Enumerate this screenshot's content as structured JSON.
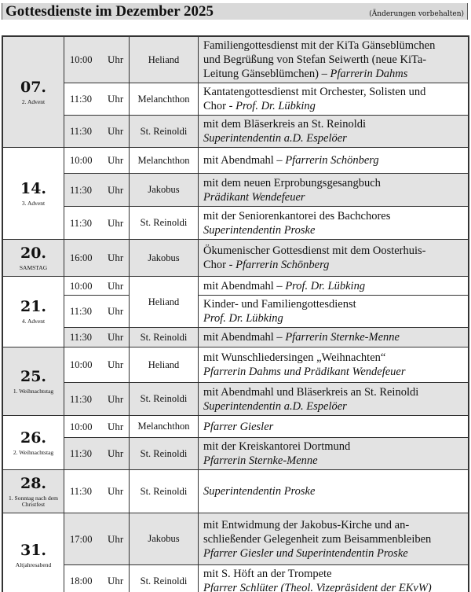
{
  "header": {
    "title": "Gottesdienste im Dezember 2025",
    "note": "(Änderungen vorbehalten)"
  },
  "unit": "Uhr",
  "days": [
    {
      "date": "07.",
      "sub": "2. Advent",
      "shaded": true,
      "rows": [
        {
          "time": "10:00",
          "place": "Heliand",
          "shaded": true,
          "h": 55,
          "lines": [
            [
              {
                "text": "Familiengottesdienst mit der KiTa Gänseblümchen"
              }
            ],
            [
              {
                "text": "und Begrüßung von Stefan Seiwerth (neue KiTa-"
              }
            ],
            [
              {
                "text": "Leitung Gänseblümchen) – "
              },
              {
                "text": "Pfarrerin Dahms",
                "italic": true
              }
            ]
          ]
        },
        {
          "time": "11:30",
          "place": "Melanchthon",
          "shaded": false,
          "h": 40,
          "lines": [
            [
              {
                "text": "Kantatengottesdienst mit Orchester, Solisten und"
              }
            ],
            [
              {
                "text": "Chor - "
              },
              {
                "text": "Prof. Dr. Lübking",
                "italic": true
              }
            ]
          ]
        },
        {
          "time": "11:30",
          "place": "St. Reinoldi",
          "shaded": true,
          "h": 39,
          "lines": [
            [
              {
                "text": "mit dem Bläserkreis an St. Reinoldi"
              }
            ],
            [
              {
                "text": "Superintendentin a.D. Espelöer",
                "italic": true
              }
            ]
          ]
        }
      ]
    },
    {
      "date": "14.",
      "sub": "3. Advent",
      "shaded": false,
      "rows": [
        {
          "time": "10:00",
          "place": "Melanchthon",
          "shaded": false,
          "h": 33,
          "lines": [
            [
              {
                "text": "mit Abendmahl – "
              },
              {
                "text": "Pfarrerin Schönberg",
                "italic": true
              }
            ]
          ]
        },
        {
          "time": "11:30",
          "place": "Jakobus",
          "shaded": true,
          "h": 42,
          "lines": [
            [
              {
                "text": "mit dem neuen Erprobungsgesangbuch"
              }
            ],
            [
              {
                "text": "Prädikant Wendefeuer",
                "italic": true
              }
            ]
          ]
        },
        {
          "time": "11:30",
          "place": "St. Reinoldi",
          "shaded": false,
          "h": 42,
          "lines": [
            [
              {
                "text": "mit der Seniorenkantorei des Bachchores"
              }
            ],
            [
              {
                "text": "Superintendentin Proske",
                "italic": true
              }
            ]
          ]
        }
      ]
    },
    {
      "date": "20.",
      "sub": "SAMSTAG",
      "shaded": true,
      "rows": [
        {
          "time": "16:00",
          "place": "Jakobus",
          "shaded": true,
          "h": 47,
          "lines": [
            [
              {
                "text": "Ökumenischer Gottesdienst mit dem Oosterhuis-"
              }
            ],
            [
              {
                "text": "Chor - "
              },
              {
                "text": "Pfarrerin Schönberg",
                "italic": true
              }
            ]
          ]
        }
      ]
    },
    {
      "date": "21.",
      "sub": "4. Advent",
      "shaded": false,
      "rows": [
        {
          "time": "10:00",
          "place": "Heliand",
          "placeSpan": 2,
          "shaded": false,
          "h": 24,
          "lines": [
            [
              {
                "text": "mit Abendmahl – "
              },
              {
                "text": "Prof. Dr. Lübking",
                "italic": true
              }
            ]
          ]
        },
        {
          "time": "11:30",
          "shaded": false,
          "h": 37,
          "lines": [
            [
              {
                "text": "Kinder- und Familiengottesdienst"
              }
            ],
            [
              {
                "text": "Prof. Dr. Lübking",
                "italic": true
              }
            ]
          ]
        },
        {
          "time": "11:30",
          "place": "St. Reinoldi",
          "shaded": true,
          "h": 25,
          "lines": [
            [
              {
                "text": "mit Abendmahl – "
              },
              {
                "text": "Pfarrerin Sternke-Menne",
                "italic": true
              }
            ]
          ]
        }
      ]
    },
    {
      "date": "25.",
      "sub": "1. Weihnachtstag",
      "shaded": true,
      "rows": [
        {
          "time": "10:00",
          "place": "Heliand",
          "shaded": false,
          "h": 45,
          "lines": [
            [
              {
                "text": "mit Wunschliedersingen „Weihnachten“"
              }
            ],
            [
              {
                "text": "Pfarrerin Dahms und Prädikant Wendefeuer",
                "italic": true
              }
            ]
          ]
        },
        {
          "time": "11:30",
          "place": "St. Reinoldi",
          "shaded": true,
          "h": 42,
          "lines": [
            [
              {
                "text": "mit Abendmahl und Bläserkreis an St. Reinoldi"
              }
            ],
            [
              {
                "text": "Superintendentin a.D. Espelöer",
                "italic": true
              }
            ]
          ]
        }
      ]
    },
    {
      "date": "26.",
      "sub": "2. Weihnachtstag",
      "shaded": false,
      "rows": [
        {
          "time": "10:00",
          "place": "Melanchthon",
          "shaded": false,
          "h": 28,
          "lines": [
            [
              {
                "text": "Pfarrer Giesler",
                "italic": true
              }
            ]
          ]
        },
        {
          "time": "11:30",
          "place": "St. Reinoldi",
          "shaded": true,
          "h": 40,
          "lines": [
            [
              {
                "text": "mit der Kreiskantorei Dortmund"
              }
            ],
            [
              {
                "text": "Pfarrerin Sternke-Menne",
                "italic": true
              }
            ]
          ]
        }
      ]
    },
    {
      "date": "28.",
      "sub": "1. Sonntag nach dem Christfest",
      "shaded": true,
      "rows": [
        {
          "time": "11:30",
          "place": "St. Reinoldi",
          "shaded": false,
          "h": 55,
          "lines": [
            [
              {
                "text": "Superintendentin Proske",
                "italic": true
              }
            ]
          ]
        }
      ]
    },
    {
      "date": "31.",
      "sub": "Altjahresabend",
      "shaded": false,
      "rows": [
        {
          "time": "17:00",
          "place": "Jakobus",
          "shaded": true,
          "h": 66,
          "lines": [
            [
              {
                "text": "mit Entwidmung der Jakobus-Kirche und an-"
              }
            ],
            [
              {
                "text": "schließender Gelegenheit zum Beisammenbleiben"
              }
            ],
            [
              {
                "text": "Pfarrer Giesler und Superintendentin Proske",
                "italic": true
              }
            ]
          ]
        },
        {
          "time": "18:00",
          "place": "St. Reinoldi",
          "shaded": false,
          "h": 42,
          "lines": [
            [
              {
                "text": "mit S. Höft an der Trompete"
              }
            ],
            [
              {
                "text": "Pfarrer Schlüter (Theol. Vizepräsident der EKvW)",
                "italic": true
              }
            ]
          ]
        }
      ]
    }
  ]
}
